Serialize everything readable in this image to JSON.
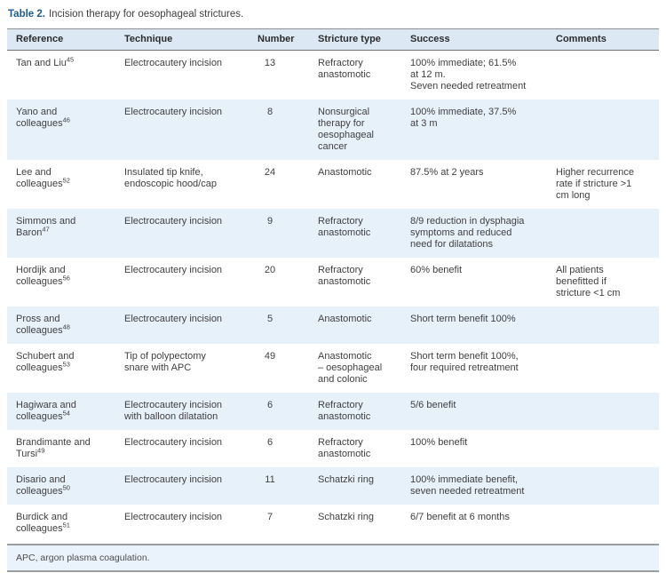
{
  "colors": {
    "title_accent": "#1d5c8f",
    "header_bg": "#dce9f5",
    "alt_row_bg": "#e7f1fa",
    "footnote_bg": "#eaf3fb",
    "rule_dark": "#8e8e8e",
    "rule_gray": "#9c9c9c"
  },
  "table": {
    "title_label": "Table 2.",
    "title_text": "Incision therapy for oesophageal strictures.",
    "columns": [
      "Reference",
      "Technique",
      "Number",
      "Stricture type",
      "Success",
      "Comments"
    ],
    "rows": [
      {
        "reference": "Tan and Liu",
        "reference_sup": "45",
        "technique": "Electrocautery incision",
        "number": "13",
        "stricture_type": "Refractory\nanastomotic",
        "success": "100% immediate; 61.5%\nat 12 m.\nSeven needed retreatment",
        "comments": ""
      },
      {
        "reference": "Yano and\ncolleagues",
        "reference_sup": "46",
        "technique": "Electrocautery incision",
        "number": "8",
        "stricture_type": "Nonsurgical\ntherapy for\noesophageal\ncancer",
        "success": "100% immediate, 37.5%\nat 3 m",
        "comments": ""
      },
      {
        "reference": "Lee and\ncolleagues",
        "reference_sup": "52",
        "technique": "Insulated tip knife,\nendoscopic hood/cap",
        "number": "24",
        "stricture_type": "Anastomotic",
        "success": "87.5% at 2 years",
        "comments": "Higher recurrence\nrate if stricture >1\ncm long"
      },
      {
        "reference": "Simmons and\nBaron",
        "reference_sup": "47",
        "technique": "Electrocautery incision",
        "number": "9",
        "stricture_type": "Refractory\nanastomotic",
        "success": "8/9 reduction in dysphagia\nsymptoms and reduced\nneed for dilatations",
        "comments": ""
      },
      {
        "reference": "Hordijk and\ncolleagues",
        "reference_sup": "56",
        "technique": "Electrocautery incision",
        "number": "20",
        "stricture_type": "Refractory\nanastomotic",
        "success": "60% benefit",
        "comments": "All patients\nbenefitted if\nstricture <1 cm"
      },
      {
        "reference": "Pross and\ncolleagues",
        "reference_sup": "48",
        "technique": "Electrocautery incision",
        "number": "5",
        "stricture_type": "Anastomotic",
        "success": "Short term benefit 100%",
        "comments": ""
      },
      {
        "reference": "Schubert and\ncolleagues",
        "reference_sup": "53",
        "technique": "Tip of polypectomy\nsnare with APC",
        "number": "49",
        "stricture_type": "Anastomotic\n– oesophageal\nand colonic",
        "success": "Short term benefit 100%,\nfour required retreatment",
        "comments": ""
      },
      {
        "reference": "Hagiwara and\ncolleagues",
        "reference_sup": "54",
        "technique": "Electrocautery incision\nwith balloon dilatation",
        "number": "6",
        "stricture_type": "Refractory\nanastomotic",
        "success": "5/6 benefit",
        "comments": ""
      },
      {
        "reference": "Brandimante and\nTursi",
        "reference_sup": "49",
        "technique": "Electrocautery incision",
        "number": "6",
        "stricture_type": "Refractory\nanastomotic",
        "success": "100% benefit",
        "comments": ""
      },
      {
        "reference": "Disario and\ncolleagues",
        "reference_sup": "50",
        "technique": "Electrocautery incision",
        "number": "11",
        "stricture_type": "Schatzki ring",
        "success": "100% immediate benefit,\nseven needed retreatment",
        "comments": ""
      },
      {
        "reference": "Burdick and\ncolleagues",
        "reference_sup": "51",
        "technique": "Electrocautery incision",
        "number": "7",
        "stricture_type": "Schatzki ring",
        "success": "6/7 benefit at 6 months",
        "comments": ""
      }
    ],
    "footnote": "APC, argon plasma coagulation."
  }
}
